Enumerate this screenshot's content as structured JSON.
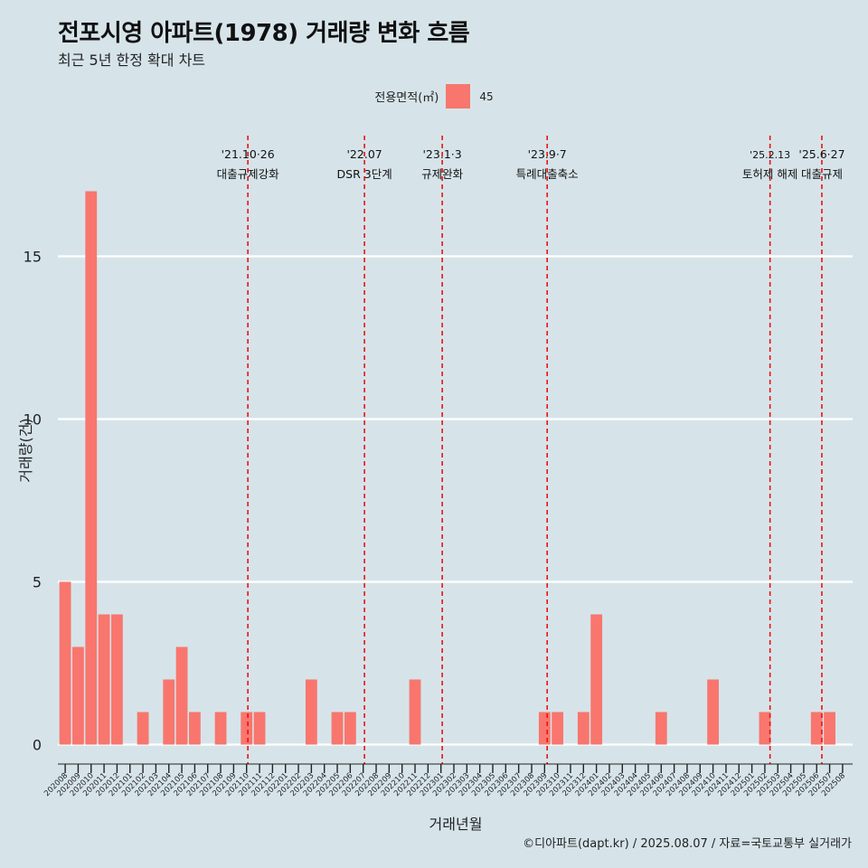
{
  "chart_data": {
    "type": "bar",
    "title": "전포시영 아파트(1978) 거래량 변화 흐름",
    "subtitle": "최근 5년 한정 확대 차트",
    "xlabel": "거래년월",
    "ylabel": "거래량(건)",
    "legend": {
      "title": "전용면적(㎡)",
      "entries": [
        {
          "name": "45",
          "color": "#f8766d"
        }
      ],
      "position": "top"
    },
    "caption": "©디아파트(dapt.kr) / 2025.08.07 / 자료=국토교통부 실거래가",
    "ylim": [
      0,
      17
    ],
    "yticks": [
      0,
      5,
      10,
      15
    ],
    "bar_color": "#f8766d",
    "categories": [
      "202008",
      "202009",
      "202010",
      "202011",
      "202012",
      "202101",
      "202102",
      "202103",
      "202104",
      "202105",
      "202106",
      "202107",
      "202108",
      "202109",
      "202110",
      "202111",
      "202112",
      "202201",
      "202202",
      "202203",
      "202204",
      "202205",
      "202206",
      "202207",
      "202208",
      "202209",
      "202210",
      "202211",
      "202212",
      "202301",
      "202302",
      "202303",
      "202304",
      "202305",
      "202306",
      "202307",
      "202308",
      "202309",
      "202310",
      "202311",
      "202312",
      "202401",
      "202402",
      "202403",
      "202404",
      "202405",
      "202406",
      "202407",
      "202408",
      "202409",
      "202410",
      "202411",
      "202412",
      "202501",
      "202502",
      "202503",
      "202504",
      "202505",
      "202506",
      "202507",
      "202508"
    ],
    "values": [
      5,
      3,
      17,
      4,
      4,
      0,
      1,
      0,
      2,
      3,
      1,
      0,
      1,
      0,
      1,
      1,
      0,
      0,
      0,
      2,
      0,
      1,
      1,
      0,
      0,
      0,
      0,
      2,
      0,
      0,
      0,
      0,
      0,
      0,
      0,
      0,
      0,
      1,
      1,
      0,
      1,
      4,
      0,
      0,
      0,
      0,
      1,
      0,
      0,
      0,
      2,
      0,
      0,
      0,
      1,
      0,
      0,
      0,
      1,
      1,
      0
    ],
    "annotations": [
      {
        "index": 14.1,
        "date": "'21.10·26",
        "label": "대출규제강화"
      },
      {
        "index": 23.1,
        "date": "'22.07",
        "label": "DSR 3단계"
      },
      {
        "index": 29.1,
        "date": "'23.1·3",
        "label": "규제완화"
      },
      {
        "index": 37.2,
        "date": "'23.9·7",
        "label": "특례대출축소"
      },
      {
        "index": 54.4,
        "date": "'25.2.13",
        "label": "토허제 해제"
      },
      {
        "index": 58.4,
        "date": "'25.6·27",
        "label": "대출규제"
      }
    ]
  }
}
